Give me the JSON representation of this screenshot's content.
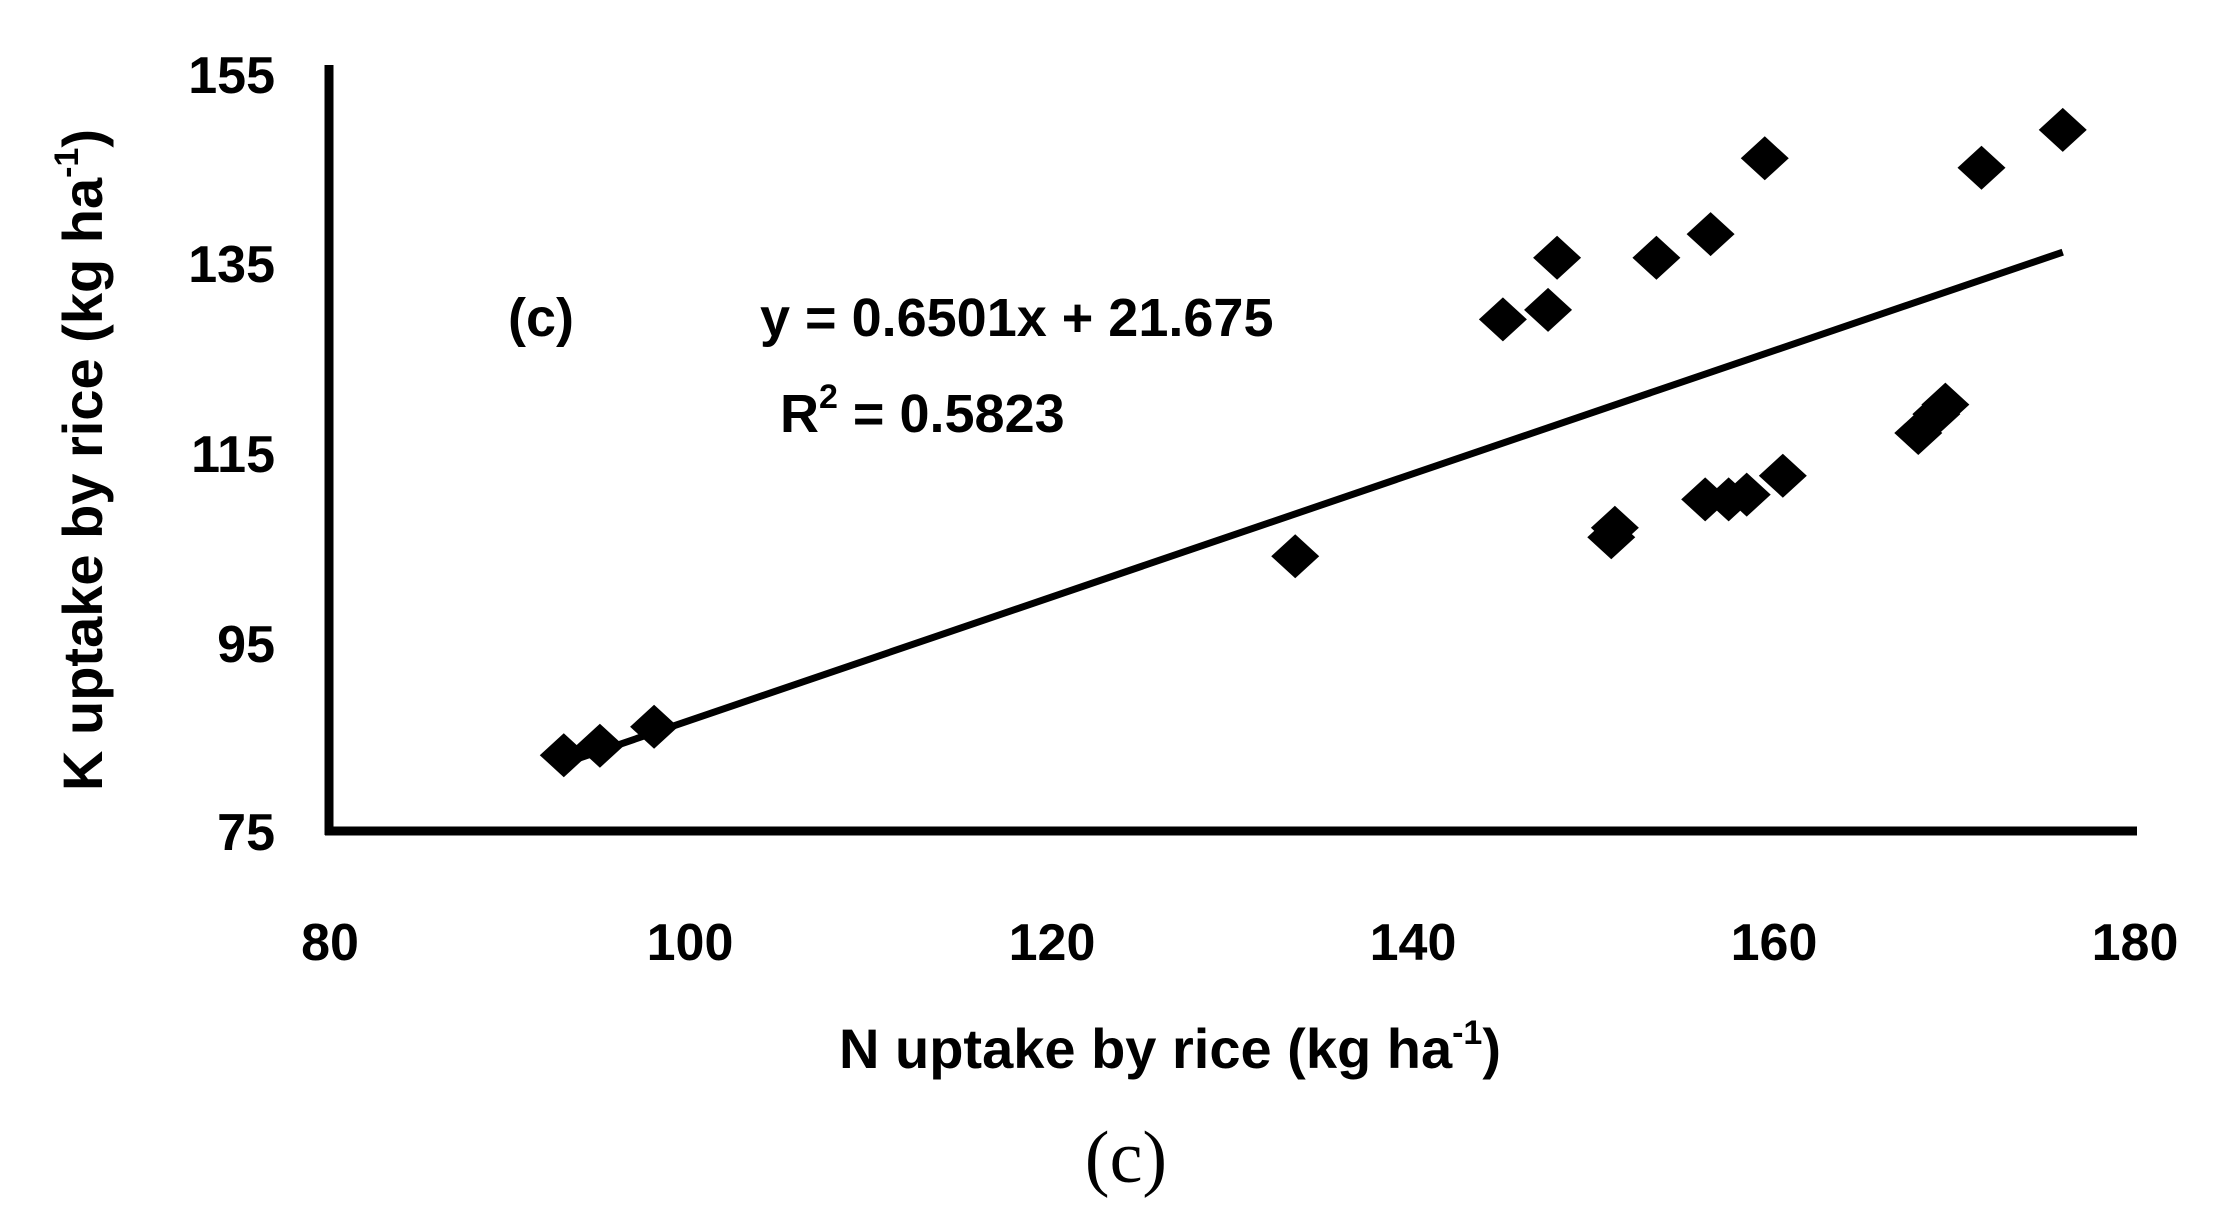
{
  "chart_data": {
    "type": "scatter",
    "xlabel": "N uptake by rice (kg ha",
    "xlabel_sup": "-1",
    "xlabel_close": ")",
    "ylabel": "K uptake by rice (kg ha",
    "ylabel_sup": "-1",
    "ylabel_close": ")",
    "xlim": [
      80,
      180
    ],
    "ylim": [
      75,
      155
    ],
    "xticks": [
      "80",
      "100",
      "120",
      "140",
      "160",
      "180"
    ],
    "yticks": [
      "75",
      "95",
      "115",
      "135",
      "155"
    ],
    "panel_label": "(c)",
    "trendline": {
      "equation": "y = 0.6501x + 21.675",
      "r2_prefix": "R",
      "r2_sup": "2",
      "r2_value": " = 0.5823",
      "slope": 0.6501,
      "intercept": 21.675,
      "x_range": [
        93,
        176
      ]
    },
    "marker_color": "#000000",
    "points": [
      [
        93,
        83
      ],
      [
        95,
        84
      ],
      [
        98,
        86
      ],
      [
        133.5,
        104
      ],
      [
        145,
        129
      ],
      [
        147.5,
        130
      ],
      [
        148,
        135.5
      ],
      [
        151,
        106
      ],
      [
        151.2,
        107
      ],
      [
        153.5,
        135.5
      ],
      [
        156.2,
        110
      ],
      [
        156.5,
        138
      ],
      [
        157.5,
        110
      ],
      [
        158.5,
        110.5
      ],
      [
        159.5,
        146
      ],
      [
        160.5,
        112.5
      ],
      [
        168,
        117
      ],
      [
        169,
        119
      ],
      [
        169.5,
        120
      ],
      [
        171.5,
        145
      ],
      [
        176,
        149
      ]
    ]
  },
  "caption": "(c)"
}
